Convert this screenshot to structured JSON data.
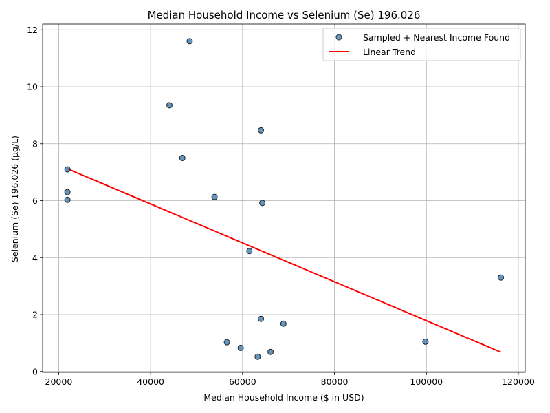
{
  "chart_data": {
    "type": "scatter",
    "title": "Median Household Income vs Selenium (Se) 196.026",
    "xlabel": "Median Household Income ($ in USD)",
    "ylabel": "Selenium (Se) 196.026 (µg/L)",
    "xlim": [
      16500,
      121500
    ],
    "ylim": [
      -0.03,
      12.2
    ],
    "xticks": [
      20000,
      40000,
      60000,
      80000,
      100000,
      120000
    ],
    "yticks": [
      0,
      2,
      4,
      6,
      8,
      10,
      12
    ],
    "grid": true,
    "legend_position": "top-right",
    "series": [
      {
        "name": "Sampled + Nearest Income Found",
        "kind": "scatter",
        "color": "#4682b4",
        "points": [
          {
            "x": 48500,
            "y": 11.6
          },
          {
            "x": 44100,
            "y": 9.35
          },
          {
            "x": 64000,
            "y": 8.47
          },
          {
            "x": 46900,
            "y": 7.5
          },
          {
            "x": 21900,
            "y": 7.1
          },
          {
            "x": 21900,
            "y": 6.3
          },
          {
            "x": 21900,
            "y": 6.03
          },
          {
            "x": 53900,
            "y": 6.13
          },
          {
            "x": 64300,
            "y": 5.92
          },
          {
            "x": 61500,
            "y": 4.23
          },
          {
            "x": 116200,
            "y": 3.3
          },
          {
            "x": 64000,
            "y": 1.85
          },
          {
            "x": 68900,
            "y": 1.68
          },
          {
            "x": 56600,
            "y": 1.03
          },
          {
            "x": 99800,
            "y": 1.05
          },
          {
            "x": 59600,
            "y": 0.83
          },
          {
            "x": 66100,
            "y": 0.69
          },
          {
            "x": 63300,
            "y": 0.52
          }
        ]
      },
      {
        "name": "Linear Trend",
        "kind": "line",
        "color": "#ff0000",
        "points": [
          {
            "x": 21900,
            "y": 7.12
          },
          {
            "x": 116200,
            "y": 0.68
          }
        ]
      }
    ]
  }
}
